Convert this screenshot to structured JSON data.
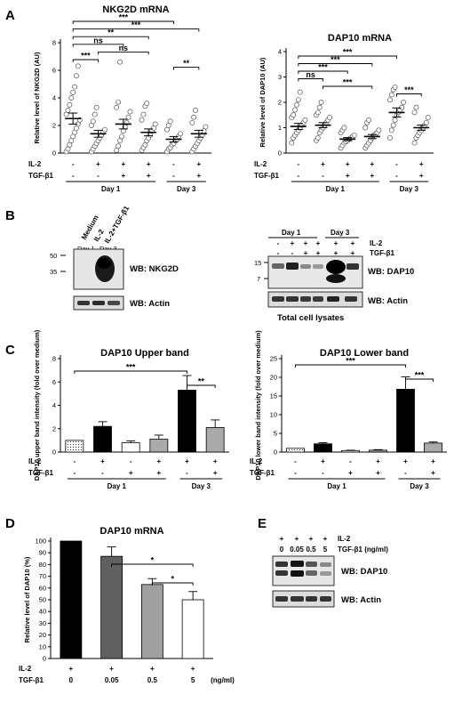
{
  "panels": {
    "A": "A",
    "B": "B",
    "C": "C",
    "D": "D",
    "E": "E"
  },
  "rows": {
    "il2": "IL-2",
    "tgf": "TGF-β1",
    "plus": "+",
    "minus": "-"
  },
  "groups": {
    "day1": "Day 1",
    "day3": "Day 3"
  },
  "panelB": {
    "lanes": [
      "Medium",
      "IL-2",
      "IL-2+TGF-β1"
    ],
    "day1": "Day 1",
    "day3": "Day 3",
    "mw_left": [
      "50",
      "35"
    ],
    "wb_nkg2d": "WB: NKG2D",
    "wb_actin": "WB: Actin",
    "mw_right": [
      "15",
      "7"
    ],
    "wb_dap10": "WB: DAP10",
    "wb_actin2": "WB: Actin",
    "total": "Total cell lysates",
    "il2": "IL-2",
    "tgf": "TGF-β1",
    "il2_signs": [
      "-",
      "+",
      "+",
      "+",
      "+",
      "+"
    ],
    "tgf_signs": [
      "-",
      "-",
      "+",
      "+",
      "+",
      "+"
    ]
  },
  "panelE": {
    "il2": "IL-2",
    "tgf": "TGF-β1 (ng/ml)",
    "il2_signs": [
      "+",
      "+",
      "+",
      "+"
    ],
    "doses": [
      "0",
      "0.05",
      "0.5",
      "5"
    ],
    "wb_dap10": "WB: DAP10",
    "wb_actin": "WB: Actin"
  },
  "chart_data": [
    {
      "id": "A1",
      "type": "scatter",
      "title": "NKG2D mRNA",
      "ylabel": "Relative level of NKG2D (AU)",
      "ylim": [
        0,
        8
      ],
      "yticks": [
        0,
        2,
        4,
        6,
        8
      ],
      "il2": [
        "-",
        "+",
        "+",
        "+",
        "-",
        "+"
      ],
      "tgf": [
        "-",
        "-",
        "+",
        "+",
        "-",
        "+"
      ],
      "groups": [
        {
          "label": "Day 1",
          "from": 0,
          "to": 3
        },
        {
          "label": "Day 3",
          "from": 4,
          "to": 5
        }
      ],
      "means": [
        2.5,
        1.4,
        2.1,
        1.5,
        1.0,
        1.4
      ],
      "sems": [
        0.4,
        0.25,
        0.35,
        0.25,
        0.2,
        0.25
      ],
      "points": [
        [
          0.1,
          0.3,
          0.6,
          0.9,
          1.2,
          1.5,
          1.8,
          2.1,
          2.4,
          2.8,
          3.1,
          3.5,
          4.0,
          4.4,
          4.8,
          5.6,
          6.3
        ],
        [
          0.1,
          0.3,
          0.5,
          0.7,
          0.9,
          1.1,
          1.3,
          1.5,
          1.7,
          2.0,
          2.3,
          2.8,
          3.3
        ],
        [
          0.2,
          0.5,
          0.9,
          1.2,
          1.6,
          1.9,
          2.2,
          2.6,
          3.0,
          3.3,
          3.7,
          6.6
        ],
        [
          0.2,
          0.4,
          0.6,
          0.9,
          1.1,
          1.3,
          1.6,
          1.8,
          2.1,
          2.4,
          2.8,
          3.4,
          3.6
        ],
        [
          0.1,
          0.3,
          0.4,
          0.6,
          0.7,
          0.9,
          1.0,
          1.2,
          1.4,
          1.7,
          2.0,
          2.3
        ],
        [
          0.1,
          0.3,
          0.5,
          0.7,
          0.9,
          1.1,
          1.3,
          1.6,
          1.9,
          2.2,
          2.6,
          3.1
        ]
      ],
      "sig": [
        {
          "from": 0,
          "to": 4,
          "label": "***"
        },
        {
          "from": 0,
          "to": 5,
          "label": "***"
        },
        {
          "from": 0,
          "to": 3,
          "label": "**"
        },
        {
          "from": 0,
          "to": 2,
          "label": "ns"
        },
        {
          "from": 1,
          "to": 3,
          "label": "ns"
        },
        {
          "from": 0,
          "to": 1,
          "label": "***"
        },
        {
          "from": 4,
          "to": 5,
          "label": "**"
        }
      ]
    },
    {
      "id": "A2",
      "type": "scatter",
      "title": "DAP10 mRNA",
      "ylabel": "Relative level of DAP10 (AU)",
      "ylim": [
        0,
        4
      ],
      "yticks": [
        0,
        1,
        2,
        3,
        4
      ],
      "il2": [
        "-",
        "+",
        "+",
        "+",
        "-",
        "+"
      ],
      "tgf": [
        "-",
        "-",
        "+",
        "+",
        "-",
        "+"
      ],
      "groups": [
        {
          "label": "Day 1",
          "from": 0,
          "to": 3
        },
        {
          "label": "Day 3",
          "from": 4,
          "to": 5
        }
      ],
      "means": [
        1.05,
        1.1,
        0.55,
        0.65,
        1.6,
        1.0
      ],
      "sems": [
        0.12,
        0.1,
        0.06,
        0.08,
        0.18,
        0.1
      ],
      "points": [
        [
          0.4,
          0.6,
          0.7,
          0.8,
          0.9,
          1.0,
          1.1,
          1.2,
          1.3,
          1.4,
          1.5,
          1.7,
          1.9,
          2.1,
          2.4
        ],
        [
          0.5,
          0.6,
          0.8,
          0.9,
          1.0,
          1.1,
          1.2,
          1.3,
          1.4,
          1.5,
          1.6,
          1.8,
          2.0
        ],
        [
          0.2,
          0.3,
          0.4,
          0.45,
          0.5,
          0.55,
          0.6,
          0.65,
          0.7,
          0.8,
          0.9,
          1.0
        ],
        [
          0.2,
          0.3,
          0.4,
          0.5,
          0.6,
          0.7,
          0.75,
          0.8,
          0.9,
          1.0,
          1.2,
          1.3
        ],
        [
          0.6,
          0.9,
          1.1,
          1.3,
          1.5,
          1.6,
          1.7,
          1.8,
          2.0,
          2.1,
          2.3,
          2.5,
          2.6
        ],
        [
          0.4,
          0.6,
          0.7,
          0.8,
          0.9,
          1.0,
          1.1,
          1.2,
          1.4,
          1.6,
          1.8
        ]
      ],
      "sig": [
        {
          "from": 0,
          "to": 4,
          "label": "***"
        },
        {
          "from": 0,
          "to": 3,
          "label": "***"
        },
        {
          "from": 0,
          "to": 2,
          "label": "***"
        },
        {
          "from": 0,
          "to": 1,
          "label": "ns"
        },
        {
          "from": 1,
          "to": 3,
          "label": "***"
        },
        {
          "from": 4,
          "to": 5,
          "label": "***"
        }
      ]
    },
    {
      "id": "C1",
      "type": "bar",
      "title": "DAP10 Upper band",
      "ylabel": "DAP10 upper band intensity (fold over medium)",
      "ylim": [
        0,
        8
      ],
      "yticks": [
        0,
        2,
        4,
        6,
        8
      ],
      "il2": [
        "-",
        "+",
        "-",
        "+",
        "+",
        "+"
      ],
      "tgf": [
        "-",
        "-",
        "+",
        "+",
        "-",
        "+"
      ],
      "groups": [
        {
          "label": "Day 1",
          "from": 0,
          "to": 3
        },
        {
          "label": "Day 3",
          "from": 4,
          "to": 5
        }
      ],
      "values": [
        1.0,
        2.2,
        0.8,
        1.1,
        5.3,
        2.1
      ],
      "errors": [
        0,
        0.4,
        0.15,
        0.35,
        1.25,
        0.65
      ],
      "fills": [
        "dots",
        "#000000",
        "#ffffff",
        "#aaaaaa",
        "#000000",
        "#aaaaaa"
      ],
      "sig": [
        {
          "from": 0,
          "to": 4,
          "label": "***"
        },
        {
          "from": 4,
          "to": 5,
          "label": "**"
        }
      ]
    },
    {
      "id": "C2",
      "type": "bar",
      "title": "DAP10 Lower band",
      "ylabel": "DAP10 lower band intensity (fold over medium)",
      "ylim": [
        0,
        25
      ],
      "yticks": [
        0,
        5,
        10,
        15,
        20,
        25
      ],
      "il2": [
        "-",
        "+",
        "-",
        "+",
        "+",
        "+"
      ],
      "tgf": [
        "-",
        "-",
        "+",
        "+",
        "-",
        "+"
      ],
      "groups": [
        {
          "label": "Day 1",
          "from": 0,
          "to": 3
        },
        {
          "label": "Day 3",
          "from": 4,
          "to": 5
        }
      ],
      "values": [
        1.0,
        2.2,
        0.4,
        0.5,
        16.8,
        2.4
      ],
      "errors": [
        0,
        0.3,
        0.1,
        0.15,
        3.3,
        0.3
      ],
      "fills": [
        "dots",
        "#000000",
        "#ffffff",
        "#aaaaaa",
        "#000000",
        "#aaaaaa"
      ],
      "sig": [
        {
          "from": 0,
          "to": 4,
          "label": "***"
        },
        {
          "from": 4,
          "to": 5,
          "label": "***"
        }
      ]
    },
    {
      "id": "D",
      "type": "bar",
      "title": "DAP10 mRNA",
      "ylabel": "Relative level of DAP10 (%)",
      "ylim": [
        0,
        100
      ],
      "yticks": [
        0,
        10,
        20,
        30,
        40,
        50,
        60,
        70,
        80,
        90,
        100
      ],
      "il2": [
        "+",
        "+",
        "+",
        "+"
      ],
      "tgf": [
        "0",
        "0.05",
        "0.5",
        "5"
      ],
      "unit": "(ng/ml)",
      "values": [
        100,
        87,
        63,
        50
      ],
      "errors": [
        0,
        8,
        5,
        7
      ],
      "fills": [
        "#000000",
        "#606060",
        "#a0a0a0",
        "#ffffff"
      ],
      "sig": [
        {
          "from": 1,
          "to": 3,
          "label": "*"
        },
        {
          "from": 2,
          "to": 3,
          "label": "*"
        }
      ]
    }
  ]
}
